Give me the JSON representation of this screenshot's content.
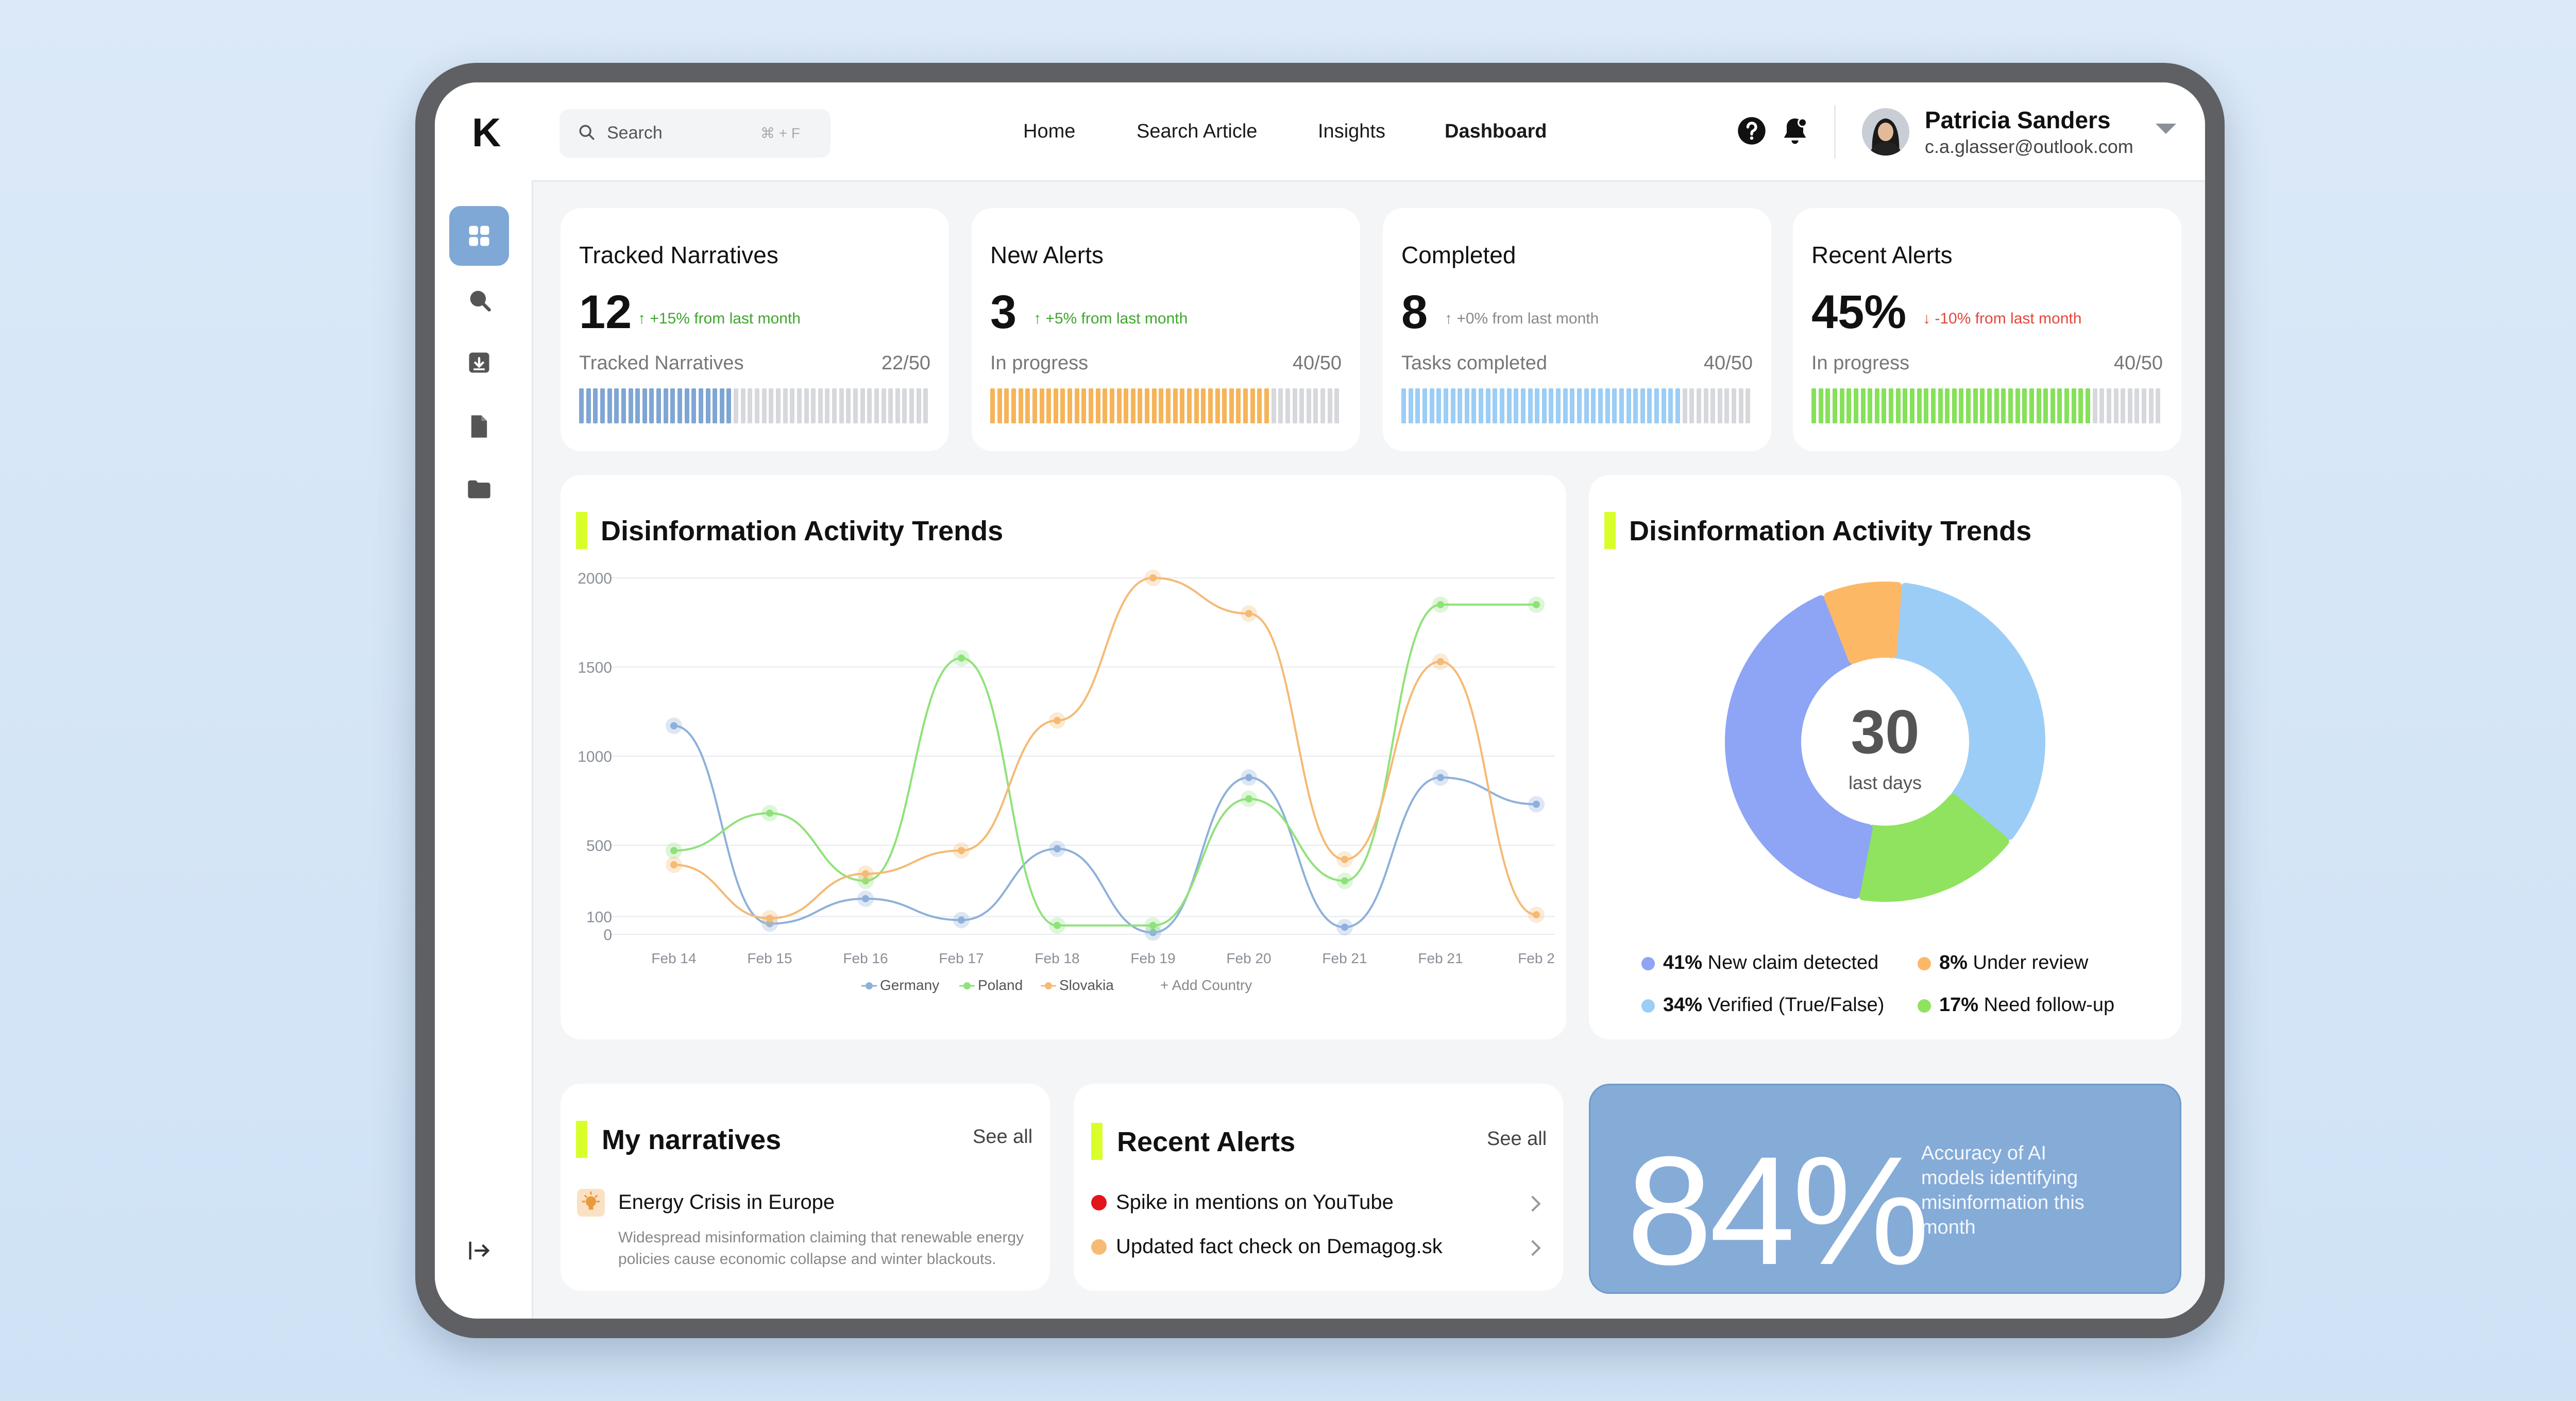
{
  "app": {
    "logo": "K"
  },
  "search": {
    "placeholder": "Search",
    "shortcut": "⌘ + F"
  },
  "nav": [
    {
      "label": "Home",
      "active": false
    },
    {
      "label": "Search Article",
      "active": false
    },
    {
      "label": "Insights",
      "active": false
    },
    {
      "label": "Dashboard",
      "active": true
    }
  ],
  "user": {
    "name": "Patricia Sanders",
    "email": "c.a.glasser@outlook.com"
  },
  "sidebar_icons": [
    "grid-icon",
    "search-icon",
    "archive-icon",
    "document-icon",
    "folder-icon",
    "logout-icon"
  ],
  "stats": [
    {
      "title": "Tracked Narratives",
      "value": "12",
      "delta": "↑ +15% from last month",
      "delta_color": "#3fa52e",
      "sub": "Tracked Narratives",
      "ratio": "22/50",
      "filled": 22,
      "total": 50,
      "bar_color": "#7fa6d3"
    },
    {
      "title": "New Alerts",
      "value": "3",
      "delta": "↑ +5% from last month",
      "delta_color": "#3fa52e",
      "sub": "In progress",
      "ratio": "40/50",
      "filled": 40,
      "total": 50,
      "bar_color": "#f5b45a"
    },
    {
      "title": "Completed",
      "value": "8",
      "delta": "↑ +0% from last month",
      "delta_color": "#888888",
      "sub": "Tasks completed",
      "ratio": "40/50",
      "filled": 40,
      "total": 50,
      "bar_color": "#9bcdf5"
    },
    {
      "title": "Recent Alerts",
      "value": "45%",
      "delta": "↓ -10% from last month",
      "delta_color": "#e2473b",
      "sub": "In progress",
      "ratio": "40/50",
      "filled": 40,
      "total": 50,
      "bar_color": "#86e05a"
    }
  ],
  "line_section": {
    "title": "Disinformation Activity Trends",
    "add_country": "+ Add Country"
  },
  "chart_data": [
    {
      "type": "line",
      "categories": [
        "Feb 14",
        "Feb 15",
        "Feb 16",
        "Feb 17",
        "Feb 18",
        "Feb 19",
        "Feb 20",
        "Feb 21",
        "Feb 21",
        "Feb 2"
      ],
      "y_ticks": [
        "2000",
        "1500",
        "1000",
        "500",
        "100",
        "0"
      ],
      "ylim": [
        0,
        2000
      ],
      "grid": true,
      "legend": "bottom",
      "series": [
        {
          "name": "Germany",
          "color": "#8eb0db",
          "values": [
            1170,
            60,
            200,
            80,
            480,
            10,
            880,
            40,
            880,
            730
          ]
        },
        {
          "name": "Poland",
          "color": "#8fe27a",
          "values": [
            470,
            680,
            300,
            1550,
            50,
            50,
            760,
            300,
            1850,
            1850
          ]
        },
        {
          "name": "Slovakia",
          "color": "#f5ba74",
          "values": [
            390,
            90,
            340,
            470,
            1200,
            2000,
            1800,
            420,
            1530,
            110
          ]
        }
      ]
    },
    {
      "type": "pie",
      "title": "Disinformation Activity Trends",
      "center_value": "30",
      "center_label": "last days",
      "slices": [
        {
          "label": "Verified (True/False)",
          "value": 34,
          "pct": "34%",
          "color": "#9ccdf6"
        },
        {
          "label": "Need follow-up",
          "value": 17,
          "pct": "17%",
          "color": "#8fe35e"
        },
        {
          "label": "New claim detected",
          "value": 41,
          "pct": "41%",
          "color": "#8ea4f4"
        },
        {
          "label": "Under review",
          "value": 8,
          "pct": "8%",
          "color": "#fdb866"
        }
      ]
    }
  ],
  "narratives": {
    "title": "My narratives",
    "see_all": "See all",
    "item": {
      "title": "Energy Crisis in Europe",
      "desc1": "Widespread misinformation claiming that renewable energy",
      "desc2": "policies cause economic collapse and winter blackouts."
    }
  },
  "alerts": {
    "title": "Recent Alerts",
    "see_all": "See all",
    "items": [
      {
        "text": "Spike in mentions on YouTube",
        "color": "#e3141c"
      },
      {
        "text": "Updated fact check on Demagog.sk",
        "color": "#f5ba74"
      }
    ]
  },
  "accuracy": {
    "value": "84%",
    "desc": "Accuracy of AI models identifying misinformation this month"
  }
}
